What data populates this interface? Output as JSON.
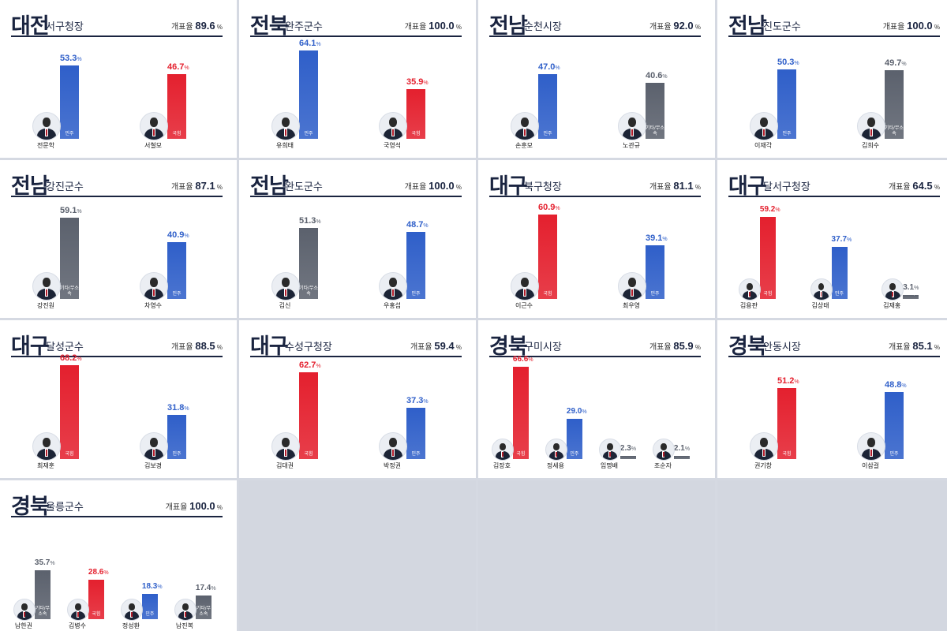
{
  "count_label": "개표율",
  "colors": {
    "blue": "#2f5fc9",
    "red": "#e4202e",
    "gray": "#5b616d"
  },
  "chart_data": [
    {
      "type": "bar",
      "region": "대전",
      "district": "서구청장",
      "count_rate": "89.6",
      "candidates": [
        {
          "name": "전문학",
          "party": "민주",
          "color": "blue",
          "value": 53.3
        },
        {
          "name": "서철모",
          "party": "국힘",
          "color": "red",
          "value": 46.7
        }
      ]
    },
    {
      "type": "bar",
      "region": "전북",
      "district": "완주군수",
      "count_rate": "100.0",
      "candidates": [
        {
          "name": "유희태",
          "party": "민주",
          "color": "blue",
          "value": 64.1
        },
        {
          "name": "국영석",
          "party": "국힘",
          "color": "red",
          "value": 35.9
        }
      ]
    },
    {
      "type": "bar",
      "region": "전남",
      "district": "순천시장",
      "count_rate": "92.0",
      "candidates": [
        {
          "name": "손훈모",
          "party": "민주",
          "color": "blue",
          "value": 47.0
        },
        {
          "name": "노관규",
          "party": "기타/무소속",
          "color": "gray",
          "value": 40.6
        }
      ]
    },
    {
      "type": "bar",
      "region": "전남",
      "district": "진도군수",
      "count_rate": "100.0",
      "candidates": [
        {
          "name": "이재각",
          "party": "민주",
          "color": "blue",
          "value": 50.3
        },
        {
          "name": "김희수",
          "party": "기타/무소속",
          "color": "gray",
          "value": 49.7
        }
      ]
    },
    {
      "type": "bar",
      "region": "전남",
      "district": "강진군수",
      "count_rate": "87.1",
      "candidates": [
        {
          "name": "강진원",
          "party": "기타/무소속",
          "color": "gray",
          "value": 59.1
        },
        {
          "name": "차영수",
          "party": "민주",
          "color": "blue",
          "value": 40.9
        }
      ]
    },
    {
      "type": "bar",
      "region": "전남",
      "district": "완도군수",
      "count_rate": "100.0",
      "candidates": [
        {
          "name": "김신",
          "party": "기타/무소속",
          "color": "gray",
          "value": 51.3
        },
        {
          "name": "우홍섭",
          "party": "민주",
          "color": "blue",
          "value": 48.7
        }
      ]
    },
    {
      "type": "bar",
      "region": "대구",
      "district": "북구청장",
      "count_rate": "81.1",
      "candidates": [
        {
          "name": "이근수",
          "party": "국힘",
          "color": "red",
          "value": 60.9
        },
        {
          "name": "최우영",
          "party": "민주",
          "color": "blue",
          "value": 39.1
        }
      ]
    },
    {
      "type": "bar",
      "region": "대구",
      "district": "달서구청장",
      "count_rate": "64.5",
      "candidates": [
        {
          "name": "김용판",
          "party": "국힘",
          "color": "red",
          "value": 59.2
        },
        {
          "name": "김상태",
          "party": "민주",
          "color": "blue",
          "value": 37.7
        },
        {
          "name": "김재홍",
          "party": "기타/무소속",
          "color": "gray",
          "value": 3.1
        }
      ]
    },
    {
      "type": "bar",
      "region": "대구",
      "district": "달성군수",
      "count_rate": "88.5",
      "candidates": [
        {
          "name": "최재훈",
          "party": "국힘",
          "color": "red",
          "value": 68.2
        },
        {
          "name": "김보경",
          "party": "민주",
          "color": "blue",
          "value": 31.8
        }
      ]
    },
    {
      "type": "bar",
      "region": "대구",
      "district": "수성구청장",
      "count_rate": "59.4",
      "candidates": [
        {
          "name": "김대권",
          "party": "국힘",
          "color": "red",
          "value": 62.7
        },
        {
          "name": "박정권",
          "party": "민주",
          "color": "blue",
          "value": 37.3
        }
      ]
    },
    {
      "type": "bar",
      "region": "경북",
      "district": "구미시장",
      "count_rate": "85.9",
      "candidates": [
        {
          "name": "김장호",
          "party": "국힘",
          "color": "red",
          "value": 66.6
        },
        {
          "name": "정세용",
          "party": "민주",
          "color": "blue",
          "value": 29.0
        },
        {
          "name": "임명배",
          "party": "기타/무소속",
          "color": "gray",
          "value": 2.3
        },
        {
          "name": "조순자",
          "party": "기타/무소속",
          "color": "gray",
          "value": 2.1
        }
      ]
    },
    {
      "type": "bar",
      "region": "경북",
      "district": "안동시장",
      "count_rate": "85.1",
      "candidates": [
        {
          "name": "권기창",
          "party": "국힘",
          "color": "red",
          "value": 51.2
        },
        {
          "name": "이삼걸",
          "party": "민주",
          "color": "blue",
          "value": 48.8
        }
      ]
    },
    {
      "type": "bar",
      "region": "경북",
      "district": "울릉군수",
      "count_rate": "100.0",
      "candidates": [
        {
          "name": "남한권",
          "party": "기타/무소속",
          "color": "gray",
          "value": 35.7
        },
        {
          "name": "김병수",
          "party": "국힘",
          "color": "red",
          "value": 28.6
        },
        {
          "name": "정성환",
          "party": "민주",
          "color": "blue",
          "value": 18.3
        },
        {
          "name": "남진복",
          "party": "기타/무소속",
          "color": "gray",
          "value": 17.4
        }
      ]
    }
  ]
}
